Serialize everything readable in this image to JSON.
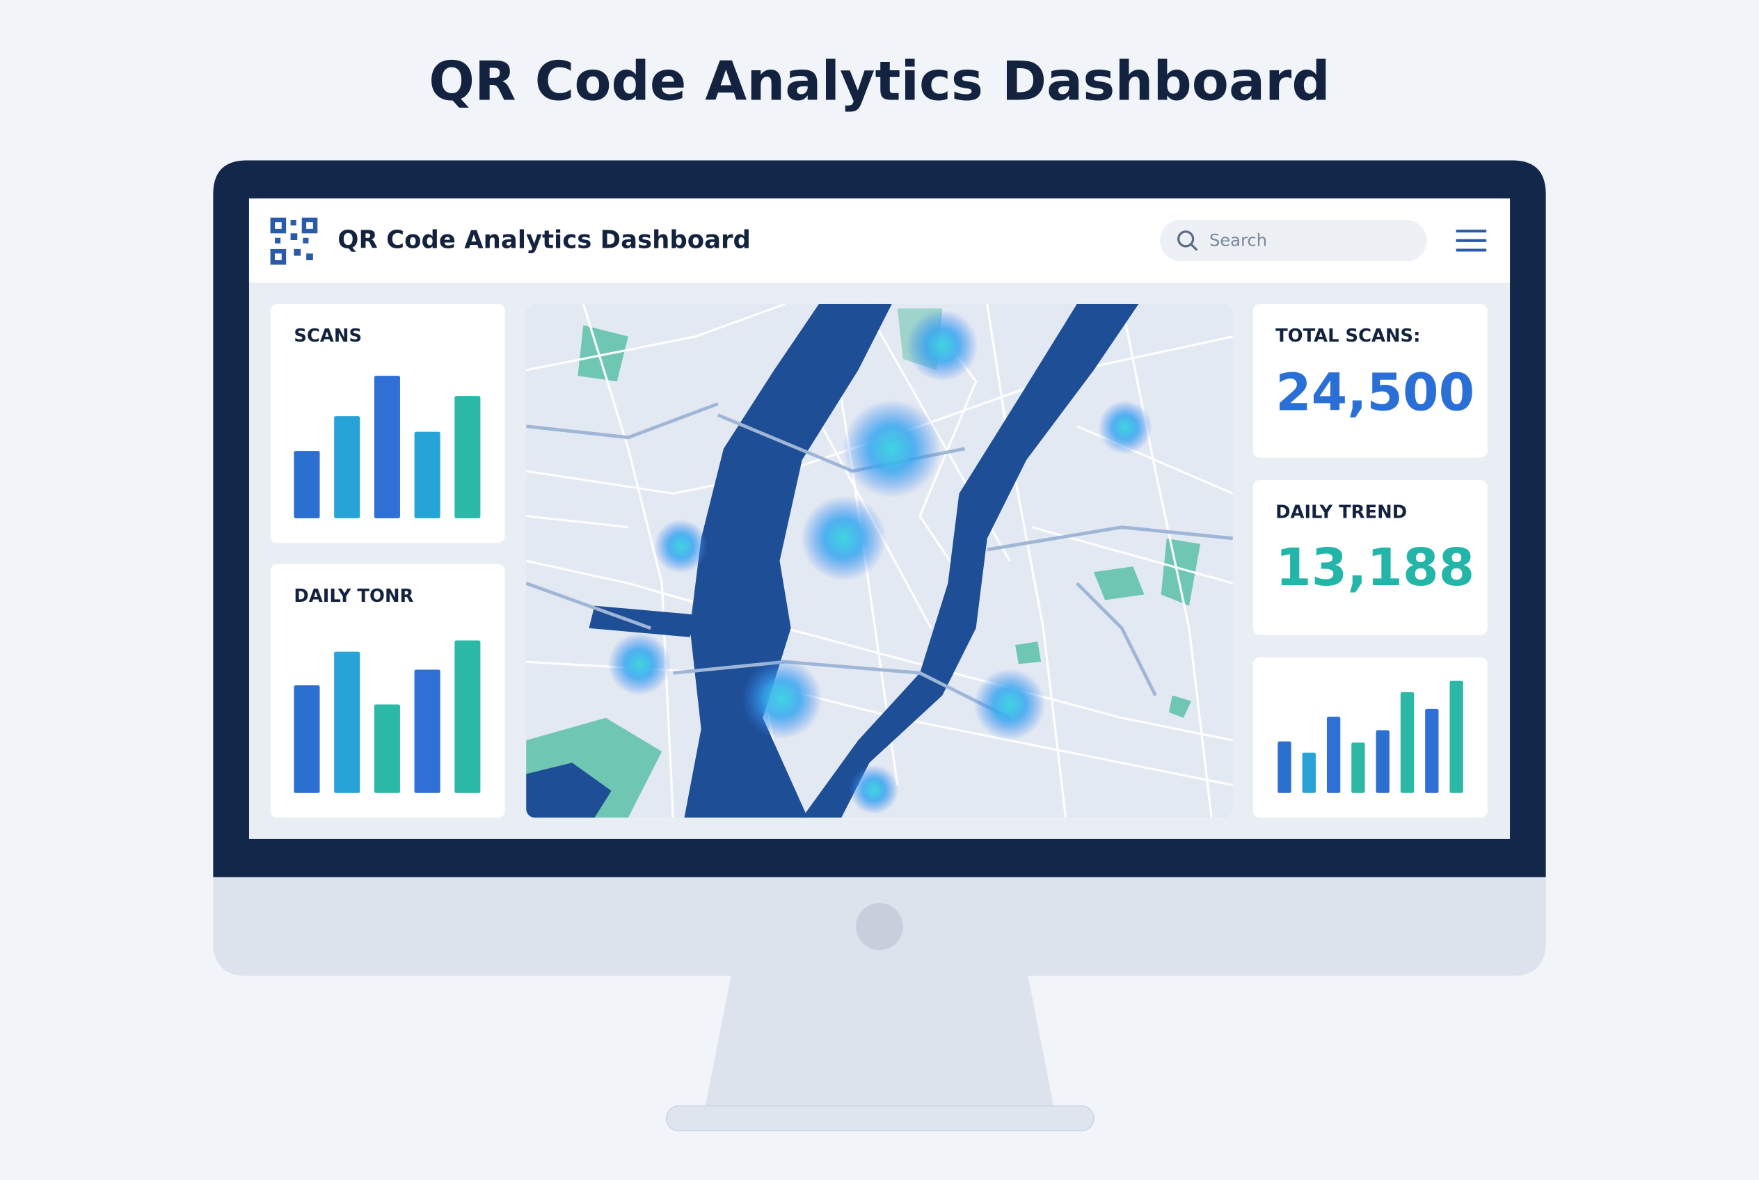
{
  "title": "QR Code Analytics Dashboard",
  "header": {
    "title": "QR Code Analytics Dashboard",
    "search_placeholder": "Search"
  },
  "widgets": {
    "scans": {
      "label": "SCANS",
      "values": [
        60,
        91,
        127,
        77,
        109
      ],
      "colors": [
        "#2b6fd1",
        "#27a3d8",
        "#2f70d6",
        "#25a5d6",
        "#2bb8a7"
      ]
    },
    "daily": {
      "label": "DAILY TONR",
      "values": [
        96,
        126,
        79,
        110,
        136
      ],
      "colors": [
        "#2b6fd1",
        "#27a3d8",
        "#2bb8a7",
        "#2f70d6",
        "#2bb8a7"
      ]
    },
    "total_scans": {
      "label": "TOTAL SCANS:",
      "value": "24,500"
    },
    "daily_trend": {
      "label": "DAILY TREND",
      "value": "13,188"
    },
    "trend_bars": {
      "values": [
        46,
        36,
        68,
        45,
        56,
        90,
        75,
        100
      ],
      "colors": [
        "#2b6fd1",
        "#27a3d8",
        "#2f70d6",
        "#2bb8a7",
        "#2b6fd1",
        "#2bb8a7",
        "#2f70d6",
        "#2bb8a7"
      ]
    }
  }
}
